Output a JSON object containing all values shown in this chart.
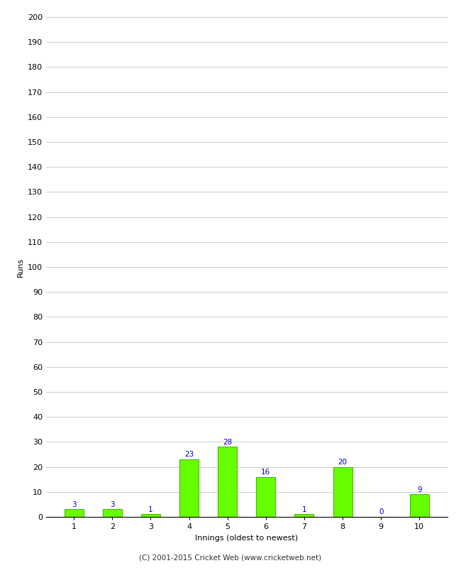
{
  "categories": [
    "1",
    "2",
    "3",
    "4",
    "5",
    "6",
    "7",
    "8",
    "9",
    "10"
  ],
  "values": [
    3,
    3,
    1,
    23,
    28,
    16,
    1,
    20,
    0,
    9
  ],
  "bar_color": "#66ff00",
  "bar_edge_color": "#44bb00",
  "label_color": "#0000cc",
  "xlabel": "Innings (oldest to newest)",
  "ylabel": "Runs",
  "ylim": [
    0,
    200
  ],
  "yticks": [
    0,
    10,
    20,
    30,
    40,
    50,
    60,
    70,
    80,
    90,
    100,
    110,
    120,
    130,
    140,
    150,
    160,
    170,
    180,
    190,
    200
  ],
  "footer": "(C) 2001-2015 Cricket Web (www.cricketweb.net)",
  "background_color": "#ffffff",
  "grid_color": "#cccccc",
  "label_fontsize": 7.5,
  "axis_tick_fontsize": 8,
  "axis_label_fontsize": 8,
  "footer_fontsize": 7.5,
  "bar_width": 0.5
}
